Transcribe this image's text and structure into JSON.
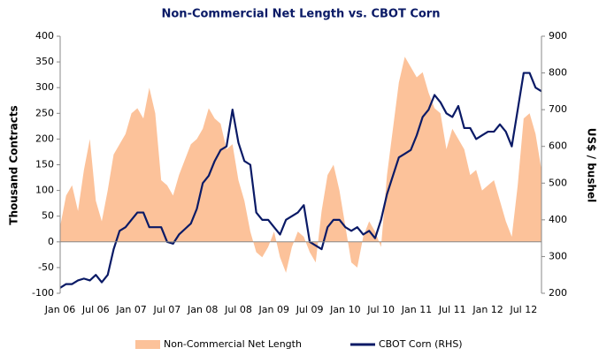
{
  "chart_data": {
    "type": "area_line",
    "title": "Non-Commercial Net Length vs. CBOT Corn",
    "y_label": "Thousand Contracts",
    "y2_label": "US$ / bushel",
    "categories": [
      "Jan 06",
      null,
      null,
      null,
      null,
      null,
      "Jul 06",
      null,
      null,
      null,
      null,
      null,
      "Jan 07",
      null,
      null,
      null,
      null,
      null,
      "Jul 07",
      null,
      null,
      null,
      null,
      null,
      "Jan 08",
      null,
      null,
      null,
      null,
      null,
      "Jul 08",
      null,
      null,
      null,
      null,
      null,
      "Jan 09",
      null,
      null,
      null,
      null,
      null,
      "Jul 09",
      null,
      null,
      null,
      null,
      null,
      "Jan 10",
      null,
      null,
      null,
      null,
      null,
      "Jul 10",
      null,
      null,
      null,
      null,
      null,
      "Jan 11",
      null,
      null,
      null,
      null,
      null,
      "Jul 11",
      null,
      null,
      null,
      null,
      null,
      "Jan 12",
      null,
      null,
      null,
      null,
      null,
      "Jul 12",
      null,
      null,
      null
    ],
    "series": [
      {
        "name": "Non-Commercial Net Length",
        "color": "#fcc29a",
        "axis": "y",
        "values": [
          30,
          90,
          110,
          60,
          140,
          200,
          80,
          40,
          100,
          170,
          190,
          210,
          250,
          260,
          240,
          300,
          250,
          120,
          110,
          90,
          130,
          160,
          190,
          200,
          220,
          260,
          240,
          230,
          180,
          190,
          120,
          80,
          20,
          -20,
          -30,
          -10,
          20,
          -30,
          -60,
          -10,
          20,
          10,
          -20,
          -40,
          60,
          130,
          150,
          100,
          30,
          -40,
          -50,
          10,
          40,
          20,
          -10,
          130,
          220,
          310,
          360,
          340,
          320,
          330,
          290,
          260,
          250,
          180,
          220,
          200,
          180,
          130,
          140,
          100,
          110,
          120,
          80,
          40,
          10,
          110,
          240,
          250,
          210,
          140
        ]
      },
      {
        "name": "CBOT Corn (RHS)",
        "color": "#0a1a66",
        "axis": "y2",
        "values": [
          215,
          225,
          225,
          235,
          240,
          235,
          250,
          230,
          250,
          320,
          370,
          380,
          400,
          420,
          420,
          380,
          380,
          380,
          340,
          335,
          360,
          375,
          390,
          430,
          500,
          520,
          560,
          590,
          600,
          700,
          610,
          560,
          550,
          420,
          400,
          400,
          380,
          360,
          400,
          410,
          420,
          440,
          340,
          330,
          320,
          380,
          400,
          400,
          380,
          370,
          380,
          360,
          370,
          350,
          400,
          470,
          520,
          570,
          580,
          590,
          630,
          680,
          700,
          740,
          720,
          690,
          680,
          710,
          650,
          650,
          620,
          630,
          640,
          640,
          660,
          640,
          600,
          700,
          800,
          800,
          760,
          750
        ]
      }
    ],
    "ylim": [
      -100,
      400
    ],
    "yticks": [
      -100,
      -50,
      0,
      50,
      100,
      150,
      200,
      250,
      300,
      350,
      400
    ],
    "y2lim": [
      200,
      900
    ],
    "y2ticks": [
      200,
      300,
      400,
      500,
      600,
      700,
      800,
      900
    ],
    "legend": "bottom"
  }
}
